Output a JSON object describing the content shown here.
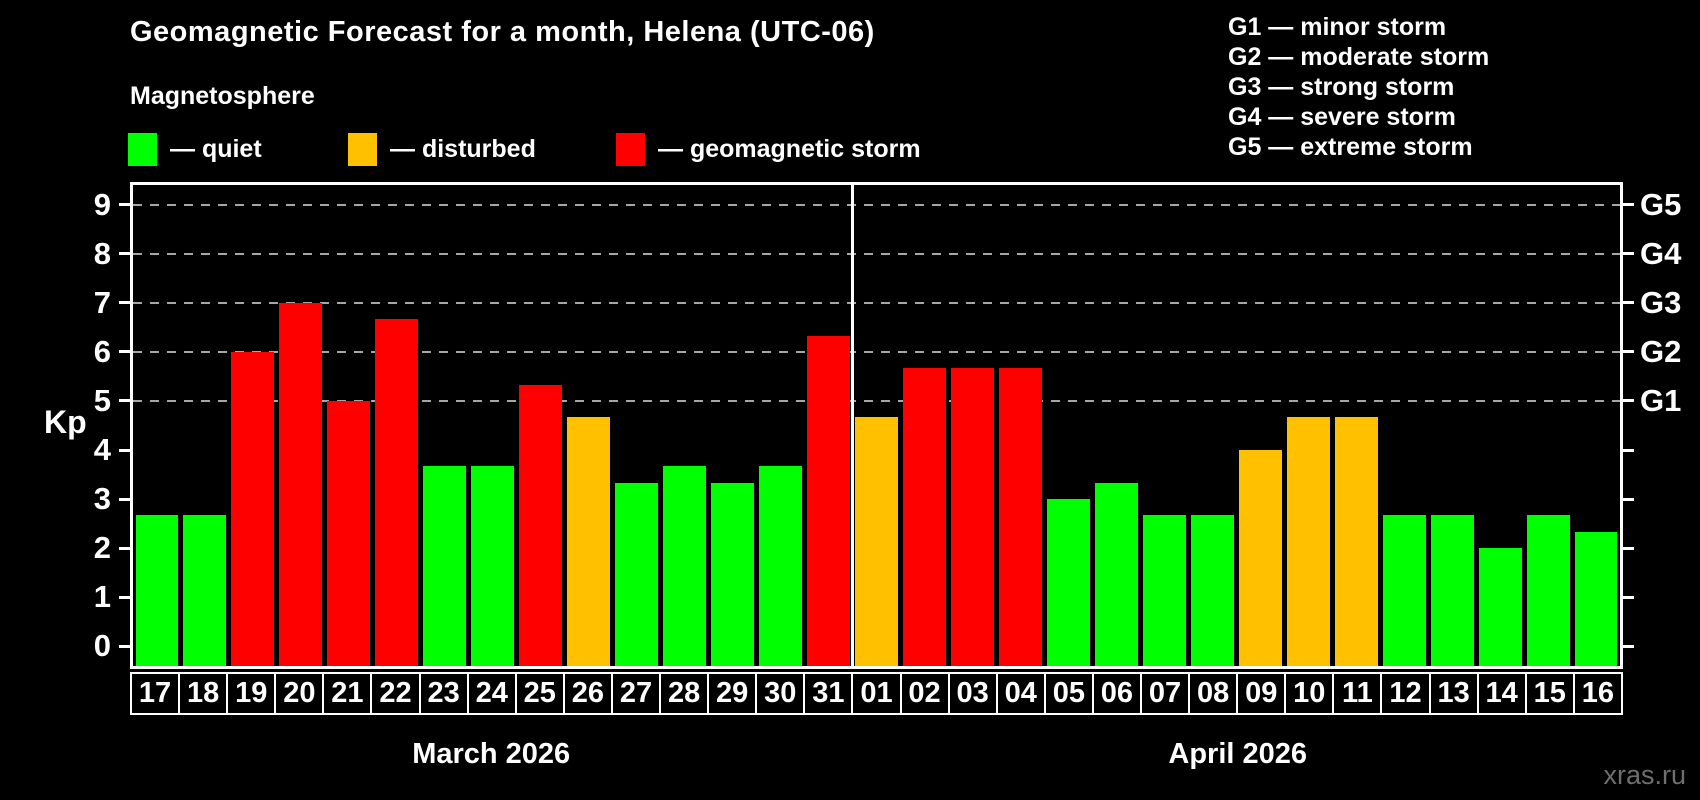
{
  "chart_data": {
    "type": "bar",
    "title": "Geomagnetic Forecast for a month, Helena (UTC-06)",
    "section_label": "Magnetosphere",
    "legend": [
      {
        "key": "quiet",
        "text": "— quiet"
      },
      {
        "key": "disturbed",
        "text": "— disturbed"
      },
      {
        "key": "storm",
        "text": "— geomagnetic storm"
      }
    ],
    "g_scale_legend": [
      "G1 — minor storm",
      "G2 — moderate storm",
      "G3 — strong storm",
      "G4 — severe storm",
      "G5 — extreme storm"
    ],
    "ylabel": "Kp",
    "ylim": [
      -0.4,
      9.4
    ],
    "y_ticks": [
      0,
      1,
      2,
      3,
      4,
      5,
      6,
      7,
      8,
      9
    ],
    "grid_values": [
      5,
      6,
      7,
      8,
      9
    ],
    "right_axis_labels": [
      {
        "value": 5,
        "label": "G1"
      },
      {
        "value": 6,
        "label": "G2"
      },
      {
        "value": 7,
        "label": "G3"
      },
      {
        "value": 8,
        "label": "G4"
      },
      {
        "value": 9,
        "label": "G5"
      }
    ],
    "bars": [
      {
        "day": "17",
        "kp": 2.67,
        "status": "quiet"
      },
      {
        "day": "18",
        "kp": 2.67,
        "status": "quiet"
      },
      {
        "day": "19",
        "kp": 6.0,
        "status": "storm"
      },
      {
        "day": "20",
        "kp": 7.0,
        "status": "storm"
      },
      {
        "day": "21",
        "kp": 5.0,
        "status": "storm"
      },
      {
        "day": "22",
        "kp": 6.67,
        "status": "storm"
      },
      {
        "day": "23",
        "kp": 3.67,
        "status": "quiet"
      },
      {
        "day": "24",
        "kp": 3.67,
        "status": "quiet"
      },
      {
        "day": "25",
        "kp": 5.33,
        "status": "storm"
      },
      {
        "day": "26",
        "kp": 4.67,
        "status": "disturbed"
      },
      {
        "day": "27",
        "kp": 3.33,
        "status": "quiet"
      },
      {
        "day": "28",
        "kp": 3.67,
        "status": "quiet"
      },
      {
        "day": "29",
        "kp": 3.33,
        "status": "quiet"
      },
      {
        "day": "30",
        "kp": 3.67,
        "status": "quiet"
      },
      {
        "day": "31",
        "kp": 6.33,
        "status": "storm"
      },
      {
        "day": "01",
        "kp": 4.67,
        "status": "disturbed"
      },
      {
        "day": "02",
        "kp": 5.67,
        "status": "storm"
      },
      {
        "day": "03",
        "kp": 5.67,
        "status": "storm"
      },
      {
        "day": "04",
        "kp": 5.67,
        "status": "storm"
      },
      {
        "day": "05",
        "kp": 3.0,
        "status": "quiet"
      },
      {
        "day": "06",
        "kp": 3.33,
        "status": "quiet"
      },
      {
        "day": "07",
        "kp": 2.67,
        "status": "quiet"
      },
      {
        "day": "08",
        "kp": 2.67,
        "status": "quiet"
      },
      {
        "day": "09",
        "kp": 4.0,
        "status": "disturbed"
      },
      {
        "day": "10",
        "kp": 4.67,
        "status": "disturbed"
      },
      {
        "day": "11",
        "kp": 4.67,
        "status": "disturbed"
      },
      {
        "day": "12",
        "kp": 2.67,
        "status": "quiet"
      },
      {
        "day": "13",
        "kp": 2.67,
        "status": "quiet"
      },
      {
        "day": "14",
        "kp": 2.0,
        "status": "quiet"
      },
      {
        "day": "15",
        "kp": 2.67,
        "status": "quiet"
      },
      {
        "day": "16",
        "kp": 2.33,
        "status": "quiet"
      }
    ],
    "months": [
      {
        "label": "March 2026",
        "start": 0,
        "end": 14
      },
      {
        "label": "April 2026",
        "start": 15,
        "end": 30
      }
    ],
    "colors": {
      "quiet": "#00ff00",
      "disturbed": "#ffc000",
      "storm": "#ff0000",
      "background": "#000000",
      "text": "#ffffff",
      "grid": "#a6a6a6",
      "watermark": "#6e6e6e"
    },
    "watermark": "xras.ru"
  }
}
